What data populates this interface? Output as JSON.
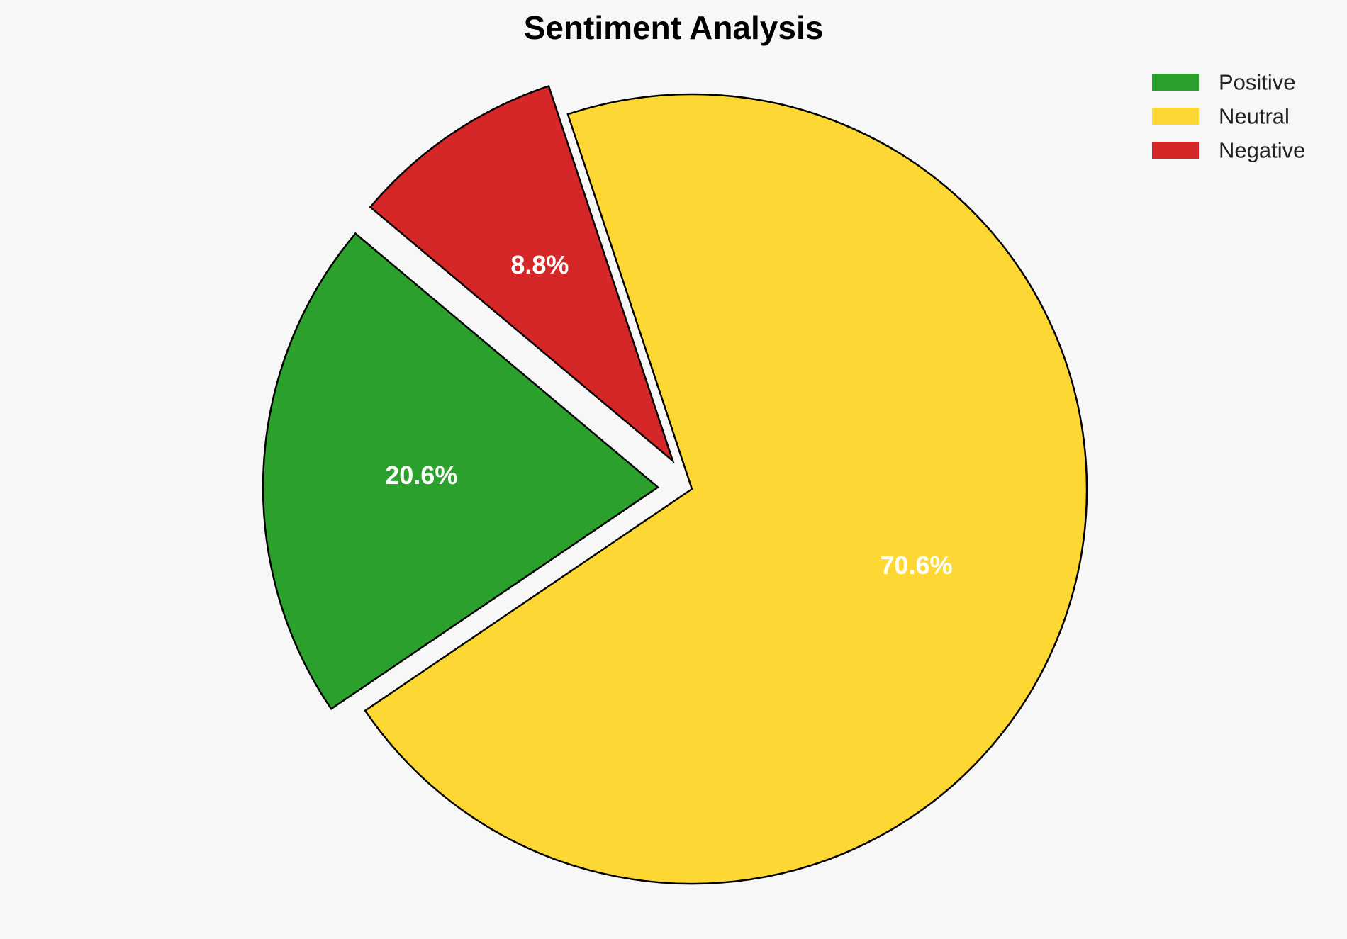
{
  "chart_data": {
    "type": "pie",
    "title": "Sentiment Analysis",
    "labels": [
      "Positive",
      "Neutral",
      "Negative"
    ],
    "values": [
      20.6,
      70.6,
      8.8
    ],
    "value_labels": [
      "20.6%",
      "70.6%",
      "8.8%"
    ],
    "colors": [
      "#2ca02c",
      "#fdd835",
      "#d62728"
    ],
    "exploded": [
      true,
      false,
      true
    ],
    "legend": {
      "placement": "top-right",
      "entries": [
        "Positive",
        "Neutral",
        "Negative"
      ]
    }
  }
}
